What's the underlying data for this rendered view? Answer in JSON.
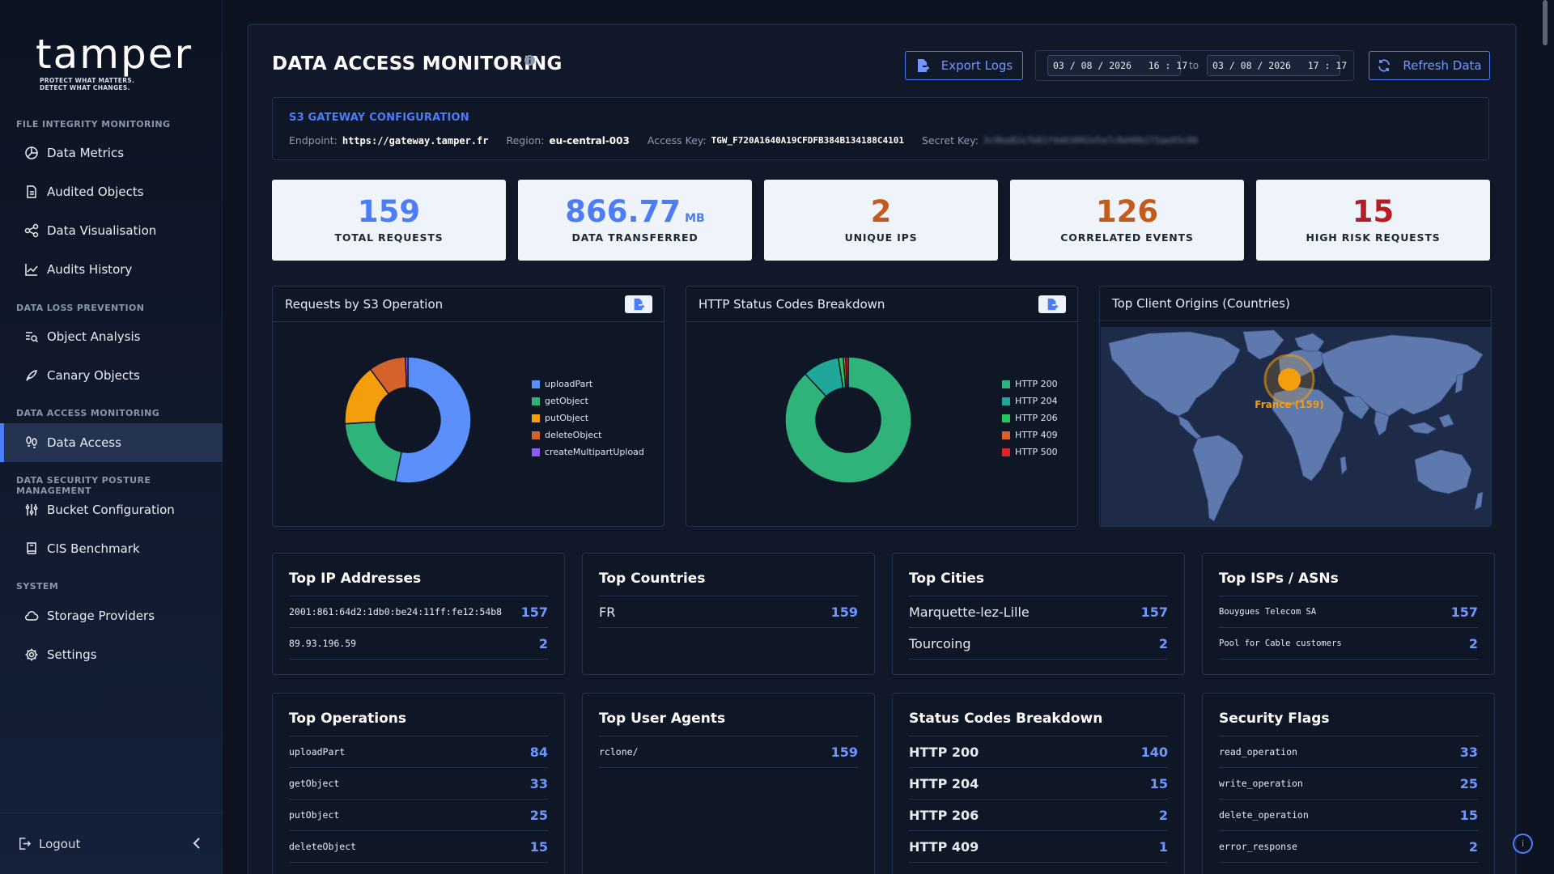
{
  "brand": {
    "name": "tamper",
    "tagline_1": "PROTECT WHAT MATTERS.",
    "tagline_2": "DETECT WHAT CHANGES."
  },
  "sidebar": {
    "sections": [
      {
        "title": "FILE INTEGRITY MONITORING"
      },
      {
        "title": "DATA LOSS PREVENTION"
      },
      {
        "title": "DATA ACCESS MONITORING"
      },
      {
        "title": "DATA SECURITY POSTURE MANAGEMENT"
      },
      {
        "title": "SYSTEM"
      }
    ],
    "items": [
      {
        "label": "Data Metrics",
        "icon": "pie-chart-icon"
      },
      {
        "label": "Audited Objects",
        "icon": "document-icon"
      },
      {
        "label": "Data Visualisation",
        "icon": "nodes-icon"
      },
      {
        "label": "Audits History",
        "icon": "line-chart-icon"
      },
      {
        "label": "Object Analysis",
        "icon": "search-list-icon"
      },
      {
        "label": "Canary Objects",
        "icon": "bird-icon"
      },
      {
        "label": "Data Access",
        "icon": "footprints-icon",
        "active": true
      },
      {
        "label": "Bucket Configuration",
        "icon": "sliders-icon"
      },
      {
        "label": "CIS Benchmark",
        "icon": "book-icon"
      },
      {
        "label": "Storage Providers",
        "icon": "cloud-icon"
      },
      {
        "label": "Settings",
        "icon": "gear-icon"
      }
    ],
    "logout_label": "Logout"
  },
  "header": {
    "title": "DATA ACCESS MONITORING",
    "export_label": "Export Logs",
    "refresh_label": "Refresh Data",
    "date_from": "03 / 08 / 2026   16 : 17",
    "date_to": "03 / 08 / 2026   17 : 17",
    "date_sep": "to"
  },
  "s3": {
    "title": "S3 GATEWAY CONFIGURATION",
    "endpoint_label": "Endpoint:",
    "endpoint": "https://gateway.tamper.fr",
    "region_label": "Region:",
    "region": "eu-central-003",
    "access_label": "Access Key:",
    "access_key": "TGW_F720A1640A19CFDFB384B134188C4101",
    "secret_label": "Secret Key:",
    "secret_masked": "3c9ba82e7b01f4d63092e5a7c8d40b1f5ae93c06"
  },
  "kpis": [
    {
      "value": "159",
      "unit": "",
      "label": "TOTAL REQUESTS",
      "color": "#4d7cf7"
    },
    {
      "value": "866.77",
      "unit": "MB",
      "label": "DATA TRANSFERRED",
      "color": "#4d7cf7"
    },
    {
      "value": "2",
      "unit": "",
      "label": "UNIQUE IPS",
      "color": "#c45a1b"
    },
    {
      "value": "126",
      "unit": "",
      "label": "CORRELATED EVENTS",
      "color": "#c45a1b"
    },
    {
      "value": "15",
      "unit": "",
      "label": "HIGH RISK REQUESTS",
      "color": "#b81c23"
    }
  ],
  "panels": {
    "ops_title": "Requests by S3 Operation",
    "http_title": "HTTP Status Codes Breakdown",
    "geo_title": "Top Client Origins (Countries)",
    "geo_marker_label": "France (159)"
  },
  "chart_data": [
    {
      "type": "pie",
      "title": "Requests by S3 Operation",
      "categories": [
        "uploadPart",
        "getObject",
        "putObject",
        "deleteObject",
        "createMultipartUpload"
      ],
      "values": [
        84,
        33,
        25,
        15,
        1
      ],
      "colors": [
        "#5b8ff9",
        "#2fb37a",
        "#f59e0b",
        "#d4622a",
        "#8b5cf6"
      ]
    },
    {
      "type": "pie",
      "title": "HTTP Status Codes Breakdown",
      "categories": [
        "HTTP 200",
        "HTTP 204",
        "HTTP 206",
        "HTTP 409",
        "HTTP 500"
      ],
      "values": [
        140,
        15,
        2,
        1,
        1
      ],
      "colors": [
        "#2fb37a",
        "#1fa89a",
        "#22c55e",
        "#d4622a",
        "#dc2626"
      ]
    }
  ],
  "lists": [
    {
      "title": "Top IP Addresses",
      "style": "mono",
      "rows": [
        {
          "k": "2001:861:64d2:1db0:be24:11ff:fe12:54b8",
          "v": "157"
        },
        {
          "k": "89.93.196.59",
          "v": "2"
        }
      ]
    },
    {
      "title": "Top Countries",
      "style": "sans",
      "rows": [
        {
          "k": "FR",
          "v": "159"
        }
      ]
    },
    {
      "title": "Top Cities",
      "style": "sans",
      "rows": [
        {
          "k": "Marquette-lez-Lille",
          "v": "157"
        },
        {
          "k": "Tourcoing",
          "v": "2"
        }
      ]
    },
    {
      "title": "Top ISPs / ASNs",
      "style": "mono-sm",
      "rows": [
        {
          "k": "Bouygues Telecom SA",
          "v": "157"
        },
        {
          "k": "Pool for Cable customers",
          "v": "2"
        }
      ]
    },
    {
      "title": "Top Operations",
      "style": "mono",
      "rows": [
        {
          "k": "uploadPart",
          "v": "84"
        },
        {
          "k": "getObject",
          "v": "33"
        },
        {
          "k": "putObject",
          "v": "25"
        },
        {
          "k": "deleteObject",
          "v": "15"
        }
      ]
    },
    {
      "title": "Top User Agents",
      "style": "mono",
      "rows": [
        {
          "k": "rclone/",
          "v": "159"
        }
      ]
    },
    {
      "title": "Status Codes Breakdown",
      "style": "bold",
      "rows": [
        {
          "k": "HTTP 200",
          "v": "140"
        },
        {
          "k": "HTTP 204",
          "v": "15"
        },
        {
          "k": "HTTP 206",
          "v": "2"
        },
        {
          "k": "HTTP 409",
          "v": "1"
        }
      ]
    },
    {
      "title": "Security Flags",
      "style": "mono",
      "rows": [
        {
          "k": "read_operation",
          "v": "33"
        },
        {
          "k": "write_operation",
          "v": "25"
        },
        {
          "k": "delete_operation",
          "v": "15"
        },
        {
          "k": "error_response",
          "v": "2"
        }
      ]
    }
  ],
  "help_label": "i"
}
